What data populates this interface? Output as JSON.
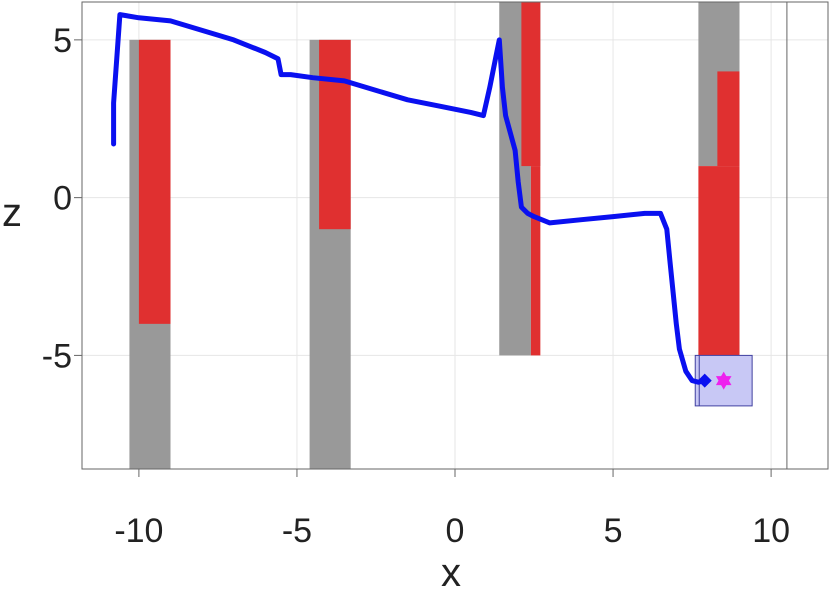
{
  "chart_data": {
    "type": "line",
    "xlabel": "x",
    "ylabel": "z",
    "xlim": [
      -11.8,
      11.8
    ],
    "ylim": [
      -8.6,
      6.2
    ],
    "x_ticks": [
      {
        "value": -10,
        "label": "-10"
      },
      {
        "value": -5,
        "label": "-5"
      },
      {
        "value": 0,
        "label": "0"
      },
      {
        "value": 5,
        "label": "5"
      },
      {
        "value": 10,
        "label": "10"
      }
    ],
    "y_ticks": [
      {
        "value": -5,
        "label": "-5"
      },
      {
        "value": 0,
        "label": "0"
      },
      {
        "value": 5,
        "label": "5"
      }
    ],
    "grid": true,
    "vertical_rules": [
      10.5
    ],
    "obstacles": [
      {
        "kind": "gray",
        "x0": -10.3,
        "x1": -9.0,
        "z0": -8.6,
        "z1": 5.0
      },
      {
        "kind": "red",
        "x0": -10.0,
        "x1": -9.0,
        "z0": -4.0,
        "z1": 5.0
      },
      {
        "kind": "gray",
        "x0": -4.6,
        "x1": -3.3,
        "z0": -8.6,
        "z1": 5.0
      },
      {
        "kind": "red",
        "x0": -4.3,
        "x1": -3.3,
        "z0": -1.0,
        "z1": 5.0
      },
      {
        "kind": "gray",
        "x0": 1.4,
        "x1": 2.4,
        "z0": -5.0,
        "z1": 6.2
      },
      {
        "kind": "gray",
        "x0": 2.4,
        "x1": 2.7,
        "z0": 1.0,
        "z1": 6.2
      },
      {
        "kind": "red",
        "x0": 2.1,
        "x1": 2.7,
        "z0": 1.0,
        "z1": 6.2
      },
      {
        "kind": "red",
        "x0": 2.4,
        "x1": 2.7,
        "z0": -5.0,
        "z1": 1.0
      },
      {
        "kind": "gray",
        "x0": 7.7,
        "x1": 9.0,
        "z0": 1.0,
        "z1": 6.2
      },
      {
        "kind": "red",
        "x0": 7.7,
        "x1": 9.0,
        "z0": -5.2,
        "z1": 1.0
      },
      {
        "kind": "red",
        "x0": 8.3,
        "x1": 9.0,
        "z0": 1.0,
        "z1": 4.0
      }
    ],
    "goal_region": {
      "x0": 7.6,
      "x1": 9.4,
      "z0": -6.6,
      "z1": -5.0
    },
    "goal_marker": {
      "x": 8.5,
      "z": -5.8
    },
    "trajectory": {
      "x": [
        -10.8,
        -10.8,
        -10.6,
        -10.0,
        -9.0,
        -8.0,
        -7.0,
        -6.0,
        -5.6,
        -5.5,
        -5.2,
        -4.5,
        -3.5,
        -2.5,
        -1.5,
        -0.5,
        0.5,
        0.9,
        1.1,
        1.3,
        1.4,
        1.5,
        1.6,
        1.9,
        2.0,
        2.1,
        2.3,
        2.5,
        3.0,
        4.0,
        5.0,
        6.0,
        6.5,
        6.7,
        6.8,
        6.9,
        7.0,
        7.1,
        7.3,
        7.5,
        7.7,
        7.9
      ],
      "z": [
        1.7,
        3.0,
        5.8,
        5.7,
        5.6,
        5.3,
        5.0,
        4.6,
        4.4,
        3.9,
        3.9,
        3.8,
        3.7,
        3.4,
        3.1,
        2.9,
        2.7,
        2.6,
        3.5,
        4.5,
        5.0,
        3.5,
        2.6,
        1.5,
        0.5,
        -0.3,
        -0.5,
        -0.6,
        -0.8,
        -0.7,
        -0.6,
        -0.5,
        -0.5,
        -1.0,
        -2.0,
        -3.0,
        -4.0,
        -4.8,
        -5.5,
        -5.8,
        -5.85,
        -5.8
      ]
    },
    "colors": {
      "obstacle_gray": "#999999",
      "obstacle_red": "#e03030",
      "trajectory": "#0a10f0",
      "goal_fill": "#c8c8f5",
      "goal_stroke": "#4040a0",
      "goal_marker": "#ee22ee",
      "grid": "#e6e6e6",
      "axis": "#666666"
    }
  }
}
